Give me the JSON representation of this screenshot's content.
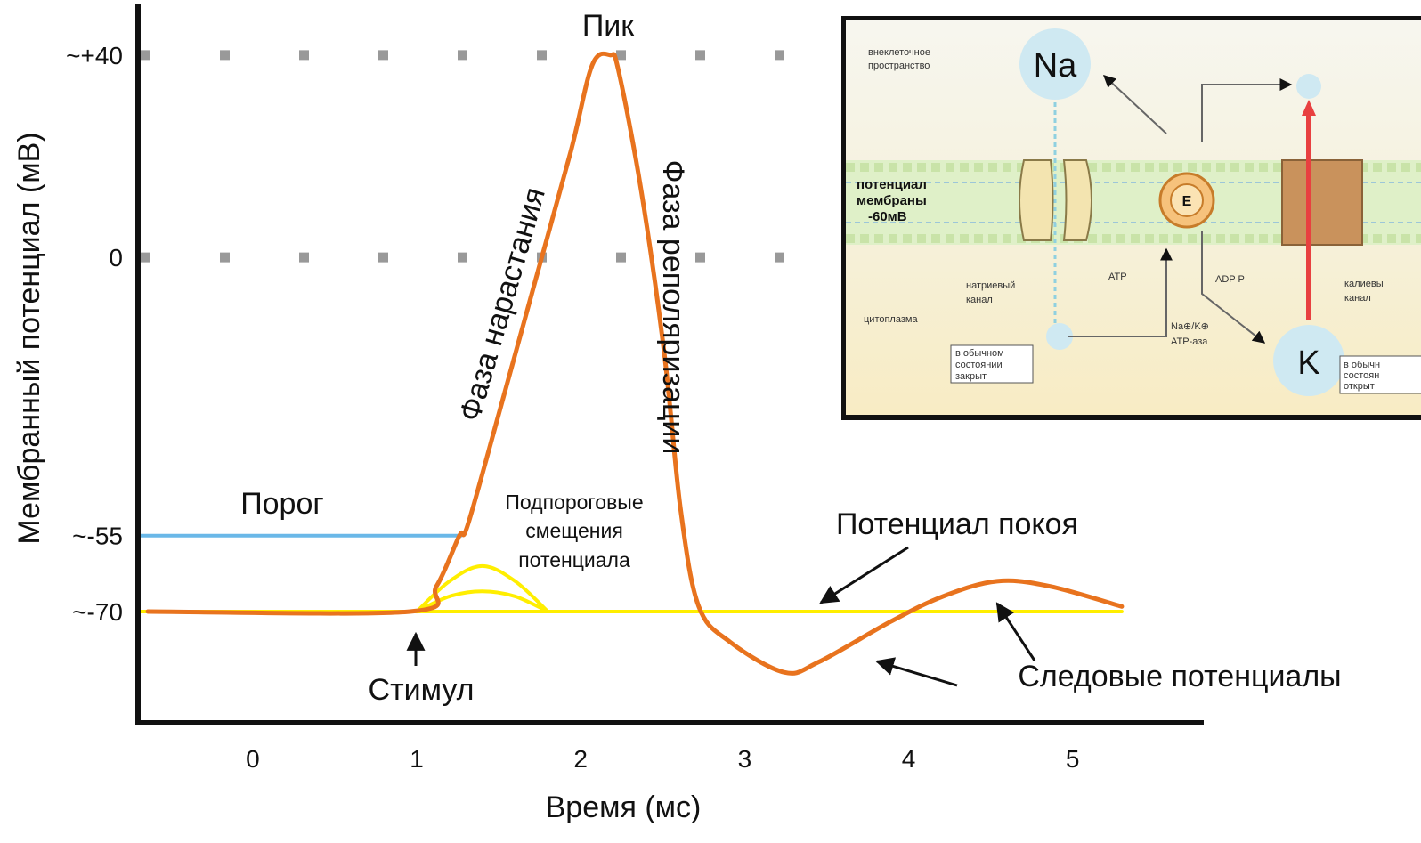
{
  "chart_data": {
    "type": "line",
    "x_label": "Время (мс)",
    "y_label": "Мембранный потенциал (мВ)",
    "xlim": [
      -0.7,
      5.8
    ],
    "ylim": [
      -92,
      50
    ],
    "xticks": [
      0,
      1,
      2,
      3,
      4,
      5
    ],
    "yticks": [
      {
        "value": 40,
        "label": "~+40"
      },
      {
        "value": 0,
        "label": "0"
      },
      {
        "value": -55,
        "label": "~-55"
      },
      {
        "value": -70,
        "label": "~-70"
      }
    ],
    "grid_lines": [
      40,
      0
    ],
    "series": [
      {
        "color": "#ffee00",
        "x": [
          -0.7,
          5.3
        ],
        "values": [
          -70,
          -70
        ]
      },
      {
        "color": "#ffee00",
        "x": [
          1.0,
          1.2,
          1.4,
          1.6,
          1.8
        ],
        "values": [
          -70,
          -64,
          -61,
          -64,
          -70
        ]
      },
      {
        "color": "#ffee00",
        "x": [
          1.0,
          1.2,
          1.4,
          1.6,
          1.8
        ],
        "values": [
          -70,
          -67,
          -66,
          -67,
          -70
        ]
      },
      {
        "color": "#6ab8e8",
        "x": [
          -0.7,
          1.27
        ],
        "values": [
          -55,
          -55
        ]
      },
      {
        "color": "#e8731e",
        "x": [
          -0.64,
          0.96,
          1.12,
          1.26,
          1.31,
          1.5,
          1.72,
          1.94,
          2.07,
          2.18,
          2.23,
          2.37,
          2.51,
          2.61,
          2.72,
          2.91,
          3.24,
          3.45,
          3.89,
          4.21,
          4.54,
          4.86,
          5.3
        ],
        "values": [
          -70,
          -70,
          -65,
          -55,
          -53,
          -31,
          -5,
          21,
          38,
          40,
          37,
          13,
          -19,
          -50,
          -69,
          -76,
          -82,
          -80,
          -72,
          -67,
          -64,
          -65,
          -69
        ]
      }
    ],
    "annotations": {
      "peak": "Пик",
      "rise": "Фаза нарастания",
      "repol": "Фаза реполяризации",
      "threshold": "Порог",
      "subthreshold": [
        "Подпороговые",
        "смещения",
        "потенциала"
      ],
      "rest": "Потенциал покоя",
      "stimulus": "Стимул",
      "after": "Следовые потенциалы"
    }
  },
  "inset": {
    "extracellular": [
      "внеклеточное",
      "пространство"
    ],
    "na": "Na",
    "k": "K",
    "membrane": [
      "потенциал",
      "мембраны",
      "-60мВ"
    ],
    "na_channel": [
      "натриевый",
      "канал"
    ],
    "cytoplasm": "цитоплазма",
    "closed": [
      "в обычном",
      "состоянии",
      "закрыт"
    ],
    "atp": "ATP",
    "adp": "ADP  P",
    "pump": [
      "Na⊕/K⊕",
      "ATP-аза"
    ],
    "enzyme": "E",
    "k_channel": [
      "калиевы",
      "канал"
    ],
    "open": [
      "в обычн",
      "состоян",
      "открыт"
    ]
  }
}
